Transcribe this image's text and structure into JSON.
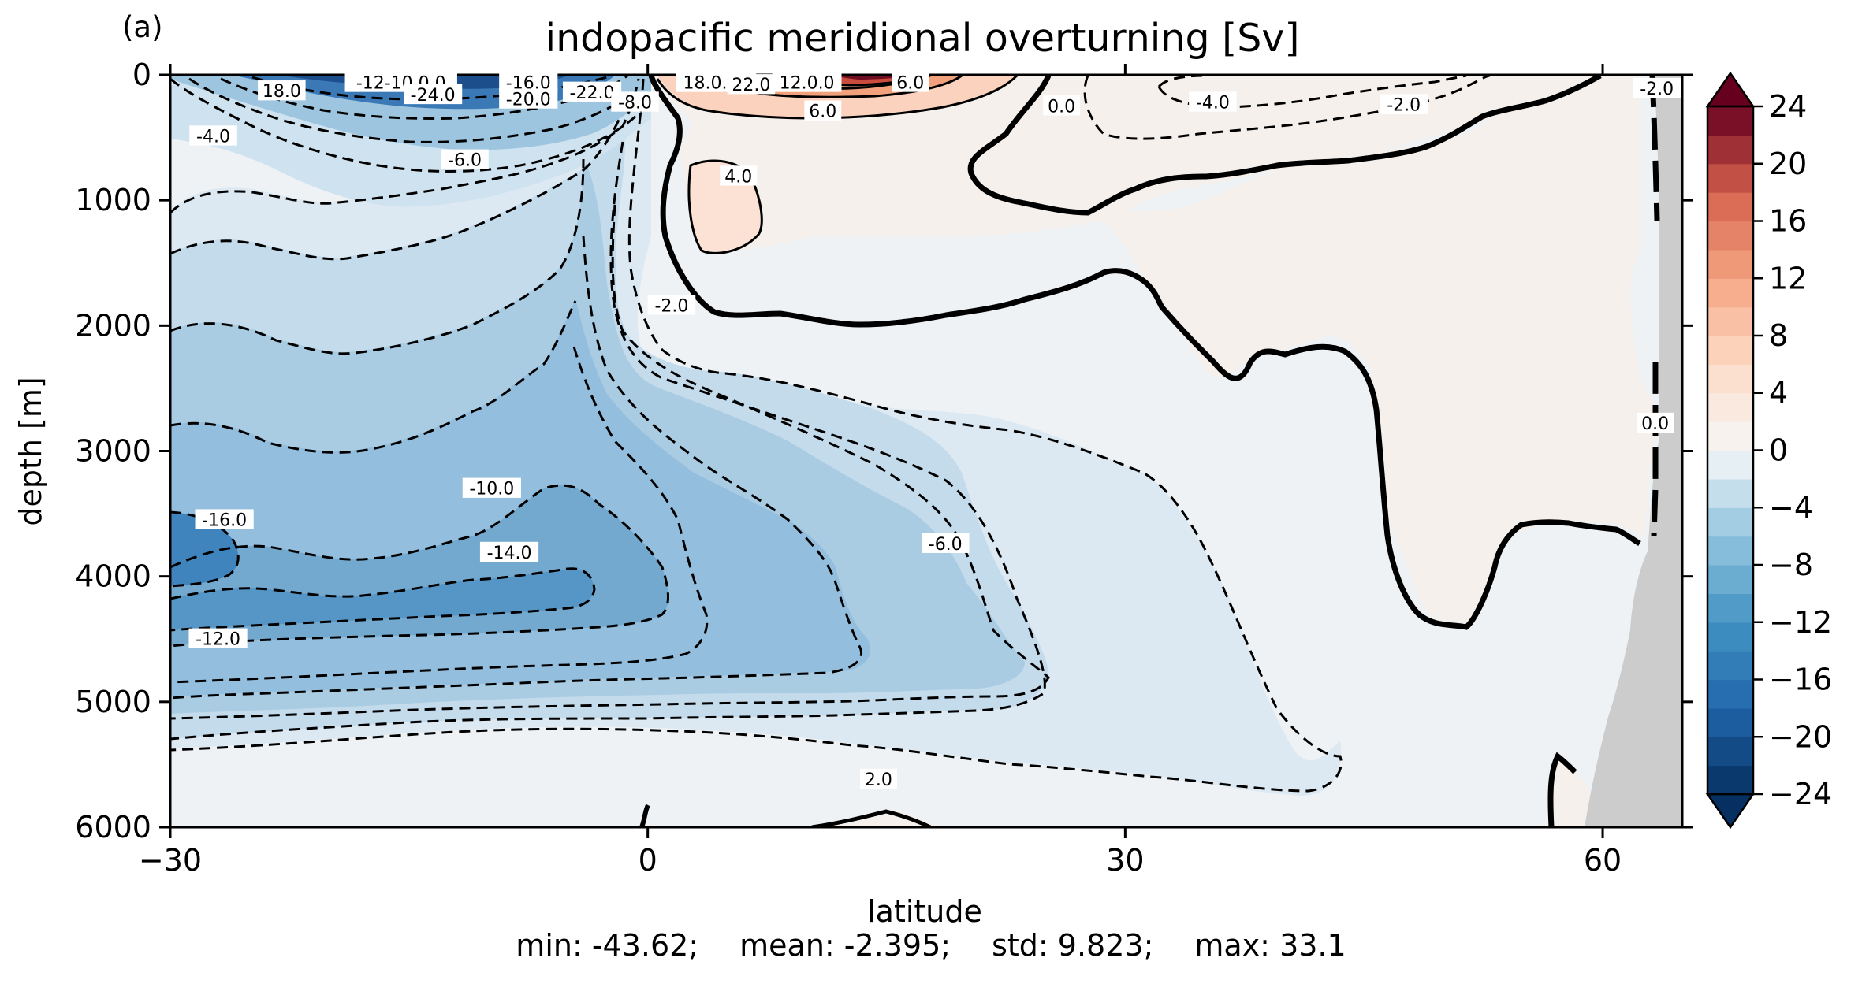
{
  "chart_data": {
    "type": "contour",
    "panel_label": "(a)",
    "title": "indopacific meridional overturning [Sv]",
    "xlabel": "latitude",
    "ylabel": "depth [m]",
    "xlim": [
      -30,
      65
    ],
    "ylim": [
      6000,
      0
    ],
    "xticks": [
      -30,
      0,
      30,
      60
    ],
    "xtick_labels": [
      "−30",
      "0",
      "30",
      "60"
    ],
    "yticks": [
      0,
      1000,
      2000,
      3000,
      4000,
      5000,
      6000
    ],
    "ytick_labels": [
      "0",
      "1000",
      "2000",
      "3000",
      "4000",
      "5000",
      "6000"
    ],
    "colorbar": {
      "colormap": "RdBu_r",
      "extend": "both",
      "levels_min": -24,
      "levels_max": 24,
      "level_step": 2,
      "ticks": [
        -24,
        -20,
        -16,
        -12,
        -8,
        -4,
        0,
        4,
        8,
        12,
        16,
        20,
        24
      ],
      "tick_labels": [
        "−24",
        "−20",
        "−16",
        "−12",
        "−8",
        "−4",
        "0",
        "4",
        "8",
        "12",
        "16",
        "20",
        "24"
      ]
    },
    "contour_labels": [
      {
        "text": "-12-10.0.0",
        "lat": -15.5,
        "depth": 30
      },
      {
        "text": "-16.0",
        "lat": -7.5,
        "depth": 30
      },
      {
        "text": "18.0",
        "lat": -23,
        "depth": 130
      },
      {
        "text": "-24.0",
        "lat": -13.5,
        "depth": 160
      },
      {
        "text": "-20.0",
        "lat": -7.5,
        "depth": 195
      },
      {
        "text": "-22.0",
        "lat": -3.5,
        "depth": 140
      },
      {
        "text": "-8.0",
        "lat": -0.8,
        "depth": 220
      },
      {
        "text": "18.0.20",
        "lat": 4.3,
        "depth": 30
      },
      {
        "text": "22.0",
        "lat": 6.5,
        "depth": 80
      },
      {
        "text": "12.0.0",
        "lat": 10,
        "depth": 30
      },
      {
        "text": "6.0",
        "lat": 16.5,
        "depth": 5
      },
      {
        "text": "6.0",
        "lat": 11,
        "depth": 290
      },
      {
        "text": "0.0",
        "lat": 26,
        "depth": 250
      },
      {
        "text": "-4.0",
        "lat": 35.5,
        "depth": 220
      },
      {
        "text": "-2.0",
        "lat": 47.5,
        "depth": 240
      },
      {
        "text": "-2.0",
        "lat": 63.4,
        "depth": 110
      },
      {
        "text": "-4.0",
        "lat": -27.3,
        "depth": 490
      },
      {
        "text": "-6.0",
        "lat": -11.5,
        "depth": 680
      },
      {
        "text": "4.0",
        "lat": 5.7,
        "depth": 810
      },
      {
        "text": "-2.0",
        "lat": 1.5,
        "depth": 1840
      },
      {
        "text": "0.0",
        "lat": 63.3,
        "depth": 2780
      },
      {
        "text": "-10.0",
        "lat": -9.8,
        "depth": 3300
      },
      {
        "text": "-16.0",
        "lat": -26.6,
        "depth": 3550
      },
      {
        "text": "-14.0",
        "lat": -8.7,
        "depth": 3810
      },
      {
        "text": "-6.0",
        "lat": 18.7,
        "depth": 3740
      },
      {
        "text": "-12.0",
        "lat": -27,
        "depth": 4500
      },
      {
        "text": "2.0",
        "lat": 14.5,
        "depth": 5620
      }
    ]
  },
  "stats": {
    "min": "min: -43.62;",
    "mean": "mean: -2.395;",
    "std": "std: 9.823;",
    "max": "max: 33.1"
  }
}
